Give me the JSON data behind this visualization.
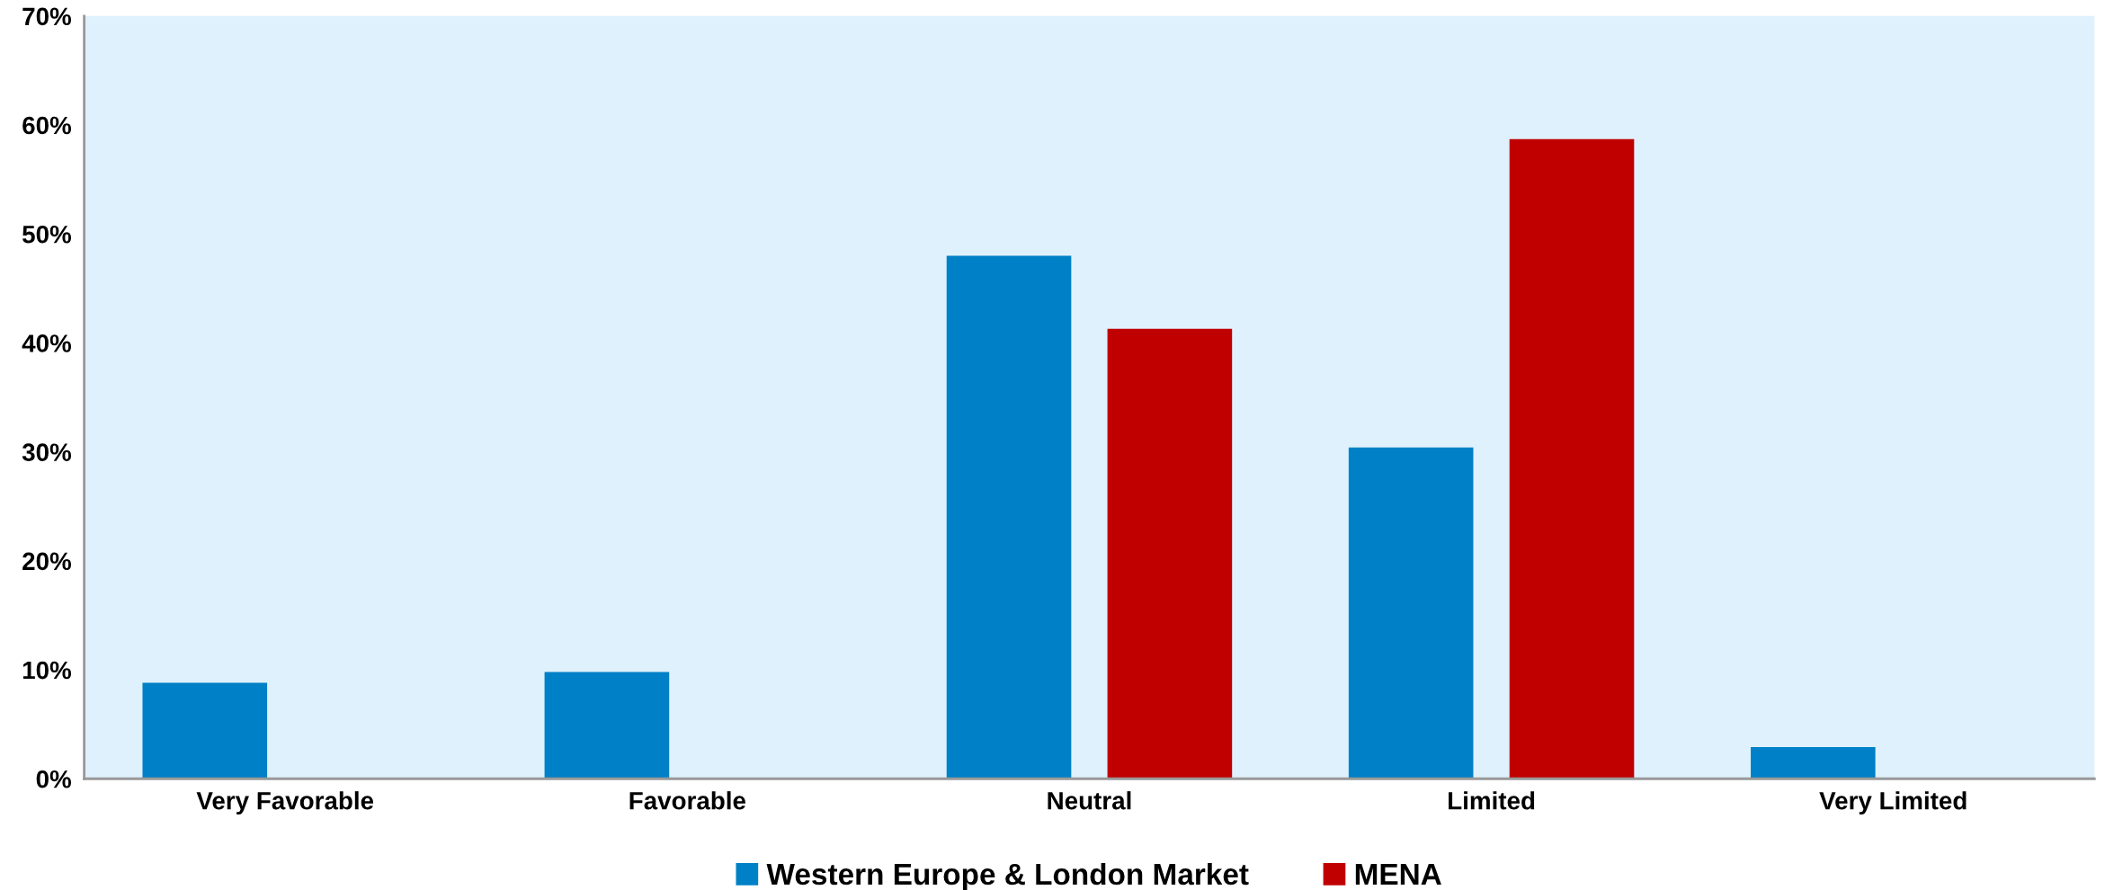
{
  "chart_data": {
    "type": "bar",
    "categories": [
      "Very Favorable",
      "Favorable",
      "Neutral",
      "Limited",
      "Very Limited"
    ],
    "series": [
      {
        "name": "Western Europe & London Market",
        "color": "#0080c6",
        "values": [
          8.8,
          9.8,
          48.0,
          30.4,
          2.9
        ]
      },
      {
        "name": "MENA",
        "color": "#c00000",
        "values": [
          0,
          0,
          41.3,
          58.7,
          0
        ]
      }
    ],
    "ylim": [
      0,
      70
    ],
    "yticks": [
      {
        "value": 0,
        "label": "0%"
      },
      {
        "value": 10,
        "label": "10%"
      },
      {
        "value": 20,
        "label": "20%"
      },
      {
        "value": 30,
        "label": "30%"
      },
      {
        "value": 40,
        "label": "40%"
      },
      {
        "value": 50,
        "label": "50%"
      },
      {
        "value": 60,
        "label": "60%"
      },
      {
        "value": 70,
        "label": "70%"
      }
    ],
    "grid": false,
    "legend": "bottom"
  }
}
